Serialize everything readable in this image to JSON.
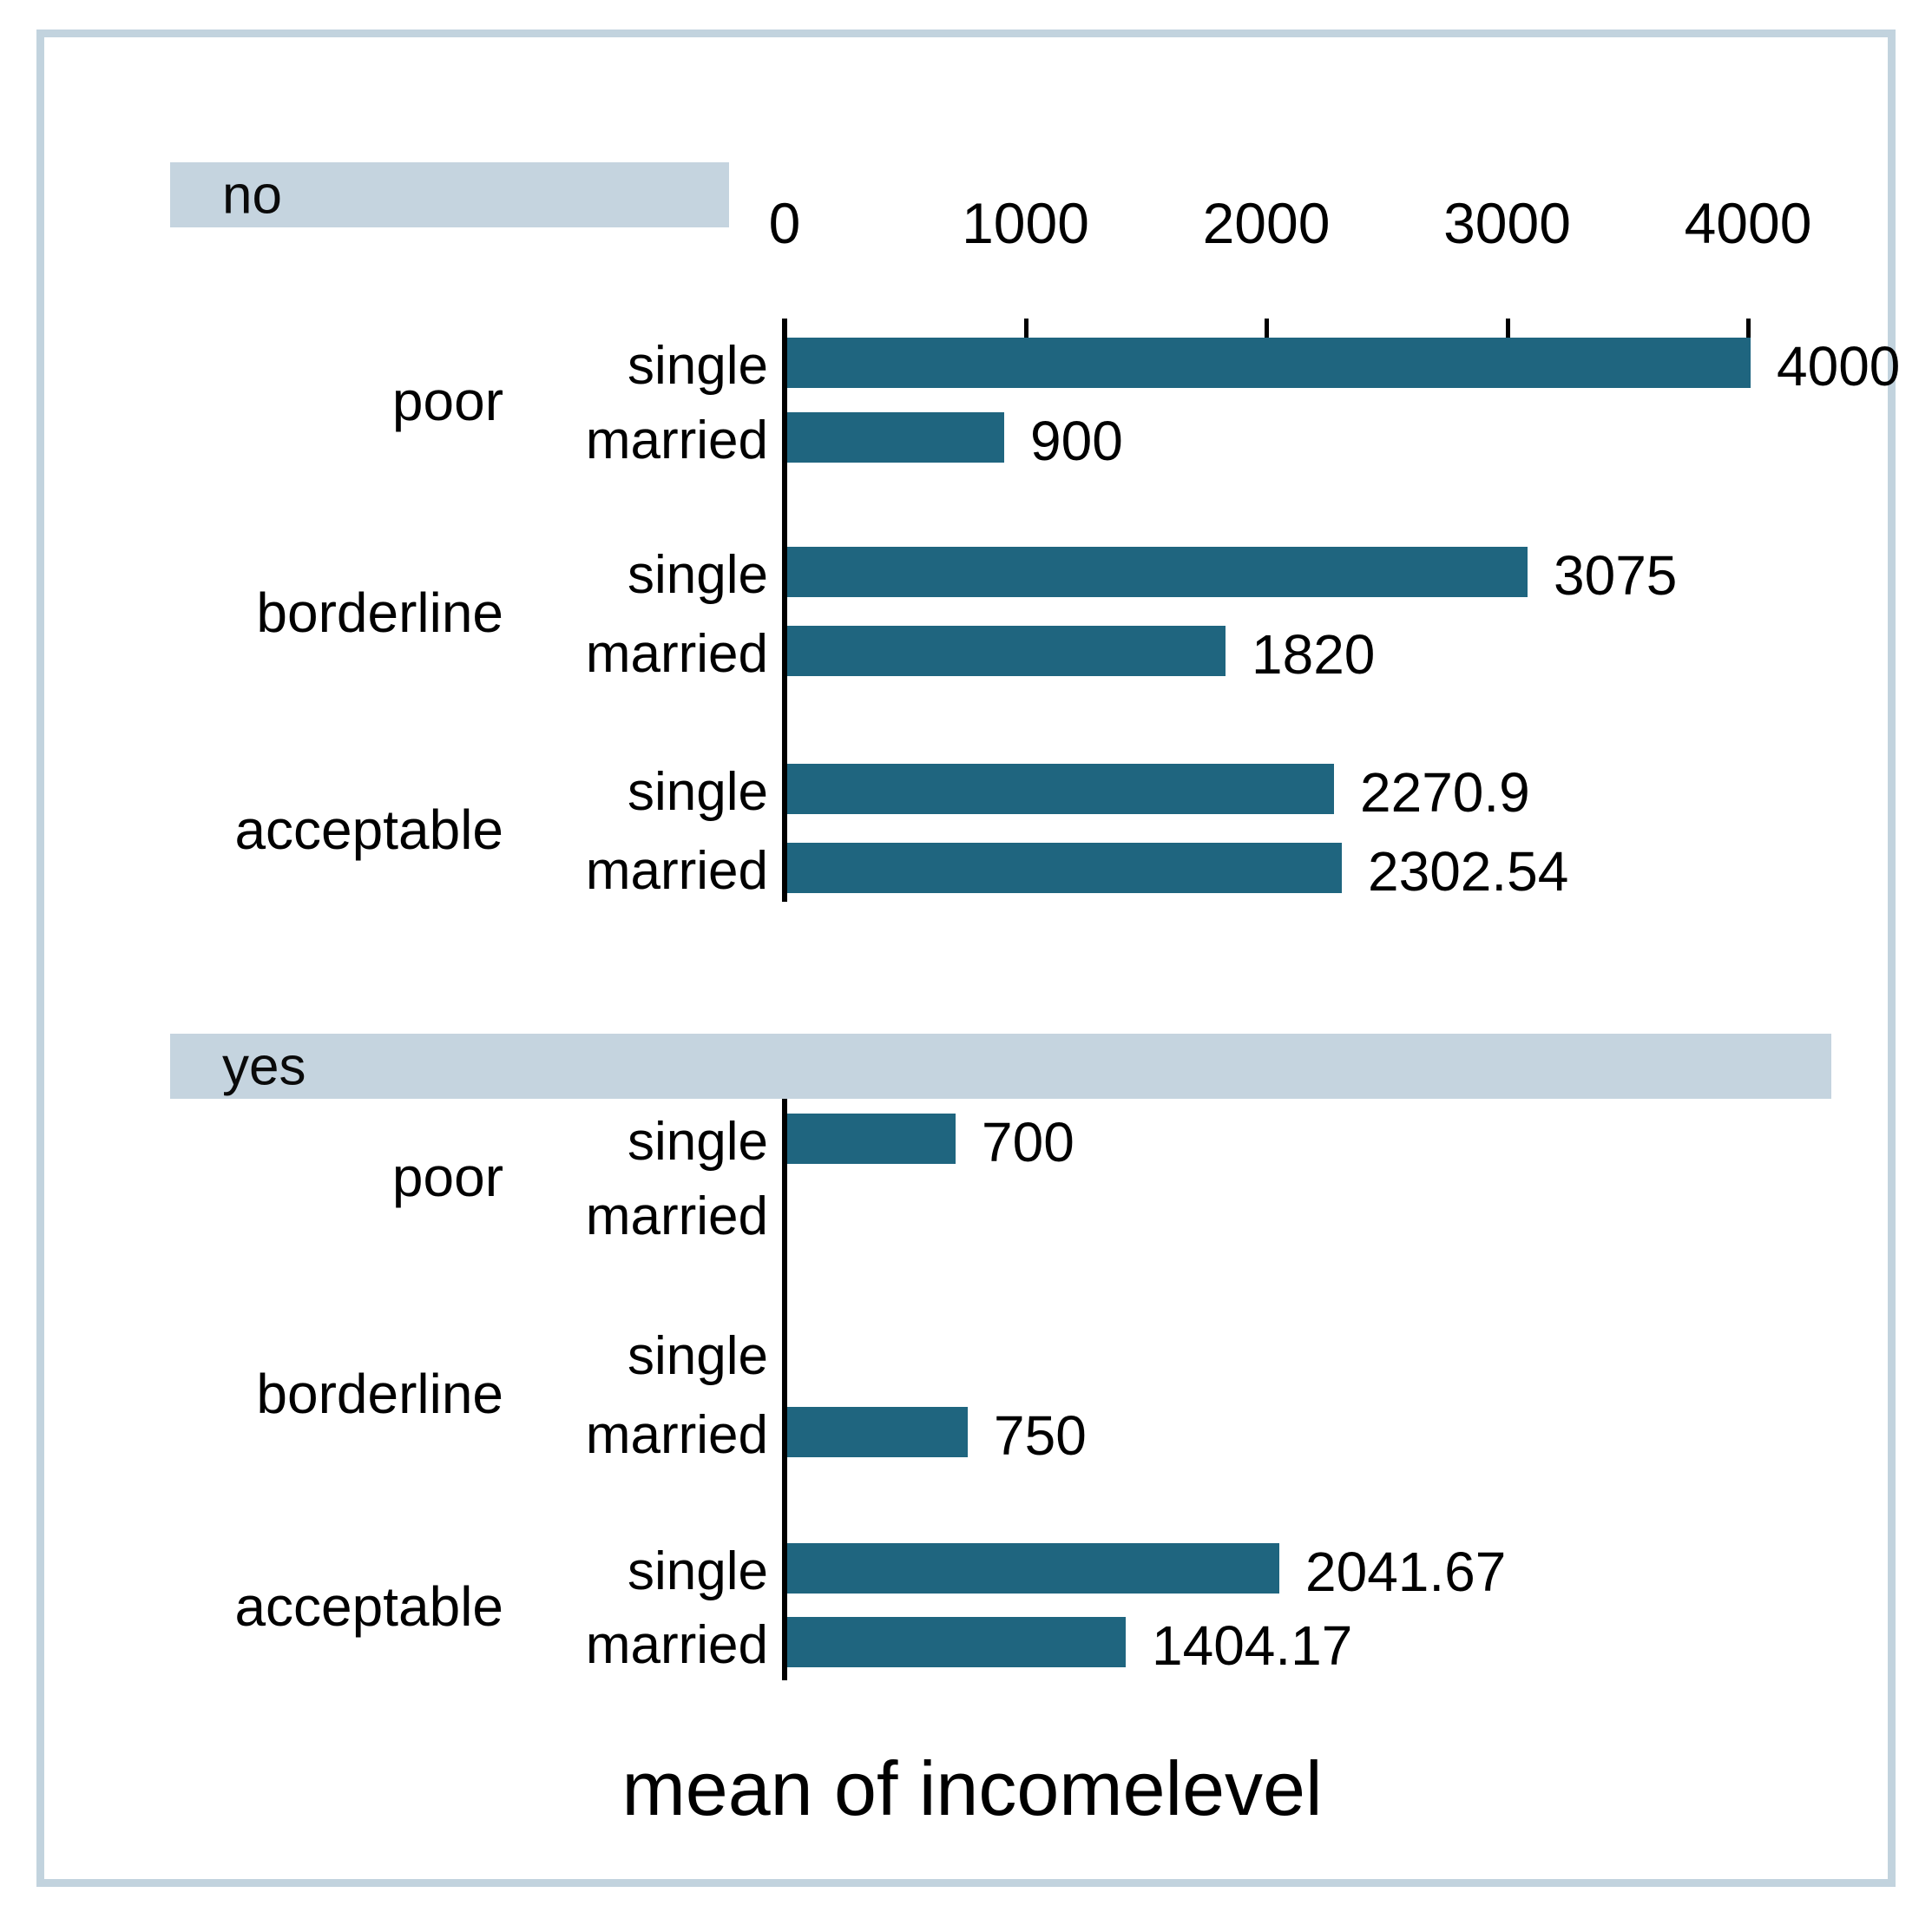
{
  "chart_data": {
    "type": "bar",
    "orientation": "horizontal",
    "xlabel_bottom": "mean of incomelevel",
    "x_axis": {
      "ticks": [
        0,
        1000,
        2000,
        3000,
        4000
      ],
      "tick_labels": [
        "0",
        "1000",
        "2000",
        "3000",
        "4000"
      ],
      "range": [
        0,
        4600
      ],
      "grid": false,
      "tick_side": "top-of-first-panel"
    },
    "legend": "none",
    "colors": {
      "bar": "#1f657f",
      "band": "#c5d4df",
      "frame": "#c2d3de",
      "text": "#000000",
      "background": "#ffffff"
    },
    "panels": [
      {
        "label": "no",
        "groups": [
          {
            "label": "poor",
            "bars": [
              {
                "label": "single",
                "value": 4000,
                "value_label": "4000"
              },
              {
                "label": "married",
                "value": 900,
                "value_label": "900"
              }
            ]
          },
          {
            "label": "borderline",
            "bars": [
              {
                "label": "single",
                "value": 3075,
                "value_label": "3075"
              },
              {
                "label": "married",
                "value": 1820,
                "value_label": "1820"
              }
            ]
          },
          {
            "label": "acceptable",
            "bars": [
              {
                "label": "single",
                "value": 2270.9,
                "value_label": "2270.9"
              },
              {
                "label": "married",
                "value": 2302.54,
                "value_label": "2302.54"
              }
            ]
          }
        ]
      },
      {
        "label": "yes",
        "groups": [
          {
            "label": "poor",
            "bars": [
              {
                "label": "single",
                "value": 700,
                "value_label": "700"
              },
              {
                "label": "married",
                "value": null,
                "value_label": ""
              }
            ]
          },
          {
            "label": "borderline",
            "bars": [
              {
                "label": "single",
                "value": null,
                "value_label": ""
              },
              {
                "label": "married",
                "value": 750,
                "value_label": "750"
              }
            ]
          },
          {
            "label": "acceptable",
            "bars": [
              {
                "label": "single",
                "value": 2041.67,
                "value_label": "2041.67"
              },
              {
                "label": "married",
                "value": 1404.17,
                "value_label": "1404.17"
              }
            ]
          }
        ]
      }
    ]
  }
}
